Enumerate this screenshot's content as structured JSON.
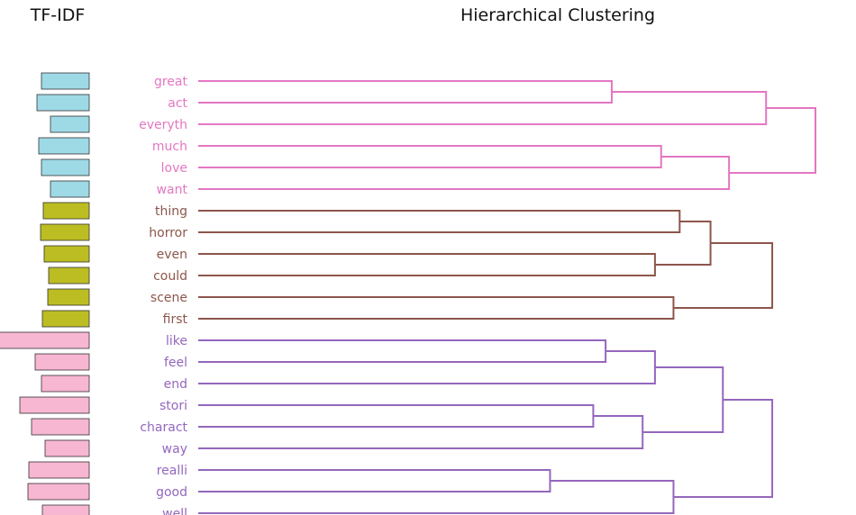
{
  "chart_data": [
    {
      "type": "bar",
      "orientation": "horizontal",
      "title": "TF-IDF",
      "axis_visible": false,
      "categories": [
        "great",
        "act",
        "everyth",
        "much",
        "love",
        "want",
        "thing",
        "horror",
        "even",
        "could",
        "scene",
        "first",
        "like",
        "feel",
        "end",
        "stori",
        "charact",
        "way",
        "realli",
        "good",
        "well"
      ],
      "values": [
        0.53,
        0.58,
        0.43,
        0.56,
        0.53,
        0.43,
        0.51,
        0.54,
        0.5,
        0.45,
        0.46,
        0.52,
        1.05,
        0.6,
        0.53,
        0.77,
        0.64,
        0.49,
        0.67,
        0.68,
        0.52
      ],
      "colors": [
        "#9ed9e6",
        "#9ed9e6",
        "#9ed9e6",
        "#9ed9e6",
        "#9ed9e6",
        "#9ed9e6",
        "#bcbd22",
        "#bcbd22",
        "#bcbd22",
        "#bcbd22",
        "#bcbd22",
        "#bcbd22",
        "#f7b6d2",
        "#f7b6d2",
        "#f7b6d2",
        "#f7b6d2",
        "#f7b6d2",
        "#f7b6d2",
        "#f7b6d2",
        "#f7b6d2",
        "#f7b6d2"
      ]
    },
    {
      "type": "dendrogram",
      "orientation": "left",
      "title": "Hierarchical Clustering",
      "axis_visible": false,
      "leaves": [
        {
          "label": "great",
          "color": "#e377c2"
        },
        {
          "label": "act",
          "color": "#e377c2"
        },
        {
          "label": "everyth",
          "color": "#e377c2"
        },
        {
          "label": "much",
          "color": "#e377c2"
        },
        {
          "label": "love",
          "color": "#e377c2"
        },
        {
          "label": "want",
          "color": "#e377c2"
        },
        {
          "label": "thing",
          "color": "#8c564b"
        },
        {
          "label": "horror",
          "color": "#8c564b"
        },
        {
          "label": "even",
          "color": "#8c564b"
        },
        {
          "label": "could",
          "color": "#8c564b"
        },
        {
          "label": "scene",
          "color": "#8c564b"
        },
        {
          "label": "first",
          "color": "#8c564b"
        },
        {
          "label": "like",
          "color": "#9467bd"
        },
        {
          "label": "feel",
          "color": "#9467bd"
        },
        {
          "label": "end",
          "color": "#9467bd"
        },
        {
          "label": "stori",
          "color": "#9467bd"
        },
        {
          "label": "charact",
          "color": "#9467bd"
        },
        {
          "label": "way",
          "color": "#9467bd"
        },
        {
          "label": "realli",
          "color": "#9467bd"
        },
        {
          "label": "good",
          "color": "#9467bd"
        },
        {
          "label": "well",
          "color": "#9467bd"
        }
      ],
      "merges": [
        {
          "a": 0,
          "b": 1,
          "height": 0.67,
          "color": "#e377c2"
        },
        {
          "a": 3,
          "b": 4,
          "height": 0.75,
          "color": "#e377c2"
        },
        {
          "a": 21,
          "b": 2,
          "height": 0.92,
          "color": "#e377c2"
        },
        {
          "a": 22,
          "b": 5,
          "height": 0.86,
          "color": "#e377c2"
        },
        {
          "a": 23,
          "b": 24,
          "height": 1.0,
          "color": "#e377c2"
        },
        {
          "a": 6,
          "b": 7,
          "height": 0.78,
          "color": "#8c564b"
        },
        {
          "a": 8,
          "b": 9,
          "height": 0.74,
          "color": "#8c564b"
        },
        {
          "a": 10,
          "b": 11,
          "height": 0.77,
          "color": "#8c564b"
        },
        {
          "a": 26,
          "b": 27,
          "height": 0.83,
          "color": "#8c564b"
        },
        {
          "a": 29,
          "b": 28,
          "height": 0.93,
          "color": "#8c564b"
        },
        {
          "a": 12,
          "b": 13,
          "height": 0.66,
          "color": "#9467bd"
        },
        {
          "a": 31,
          "b": 14,
          "height": 0.74,
          "color": "#9467bd"
        },
        {
          "a": 15,
          "b": 16,
          "height": 0.64,
          "color": "#9467bd"
        },
        {
          "a": 33,
          "b": 17,
          "height": 0.72,
          "color": "#9467bd"
        },
        {
          "a": 32,
          "b": 34,
          "height": 0.85,
          "color": "#9467bd"
        },
        {
          "a": 18,
          "b": 19,
          "height": 0.57,
          "color": "#9467bd"
        },
        {
          "a": 36,
          "b": 20,
          "height": 0.77,
          "color": "#9467bd"
        },
        {
          "a": 35,
          "b": 37,
          "height": 0.93,
          "color": "#9467bd"
        }
      ]
    }
  ]
}
